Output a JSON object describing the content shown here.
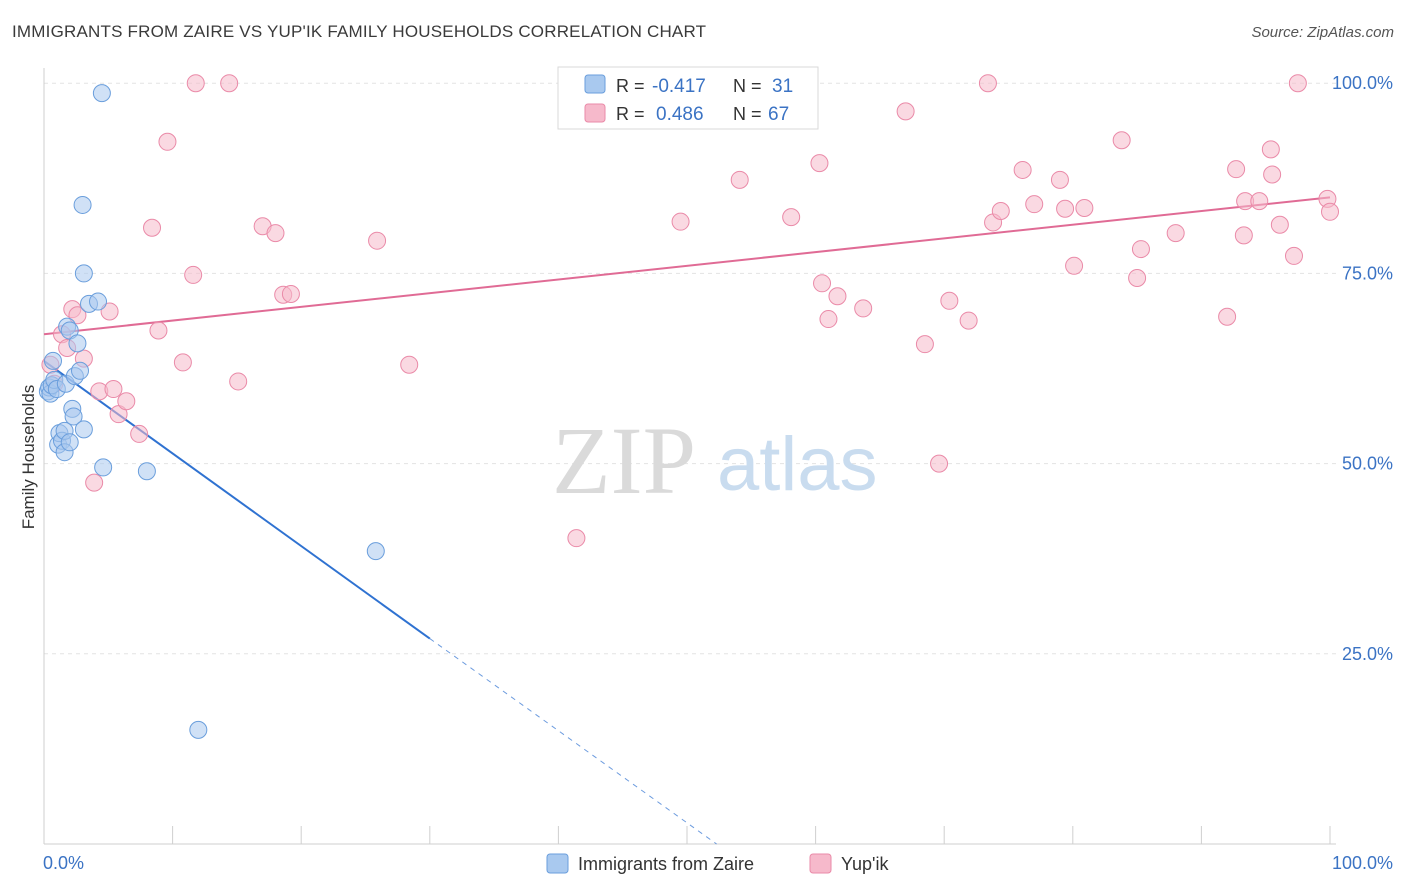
{
  "header": {
    "title": "IMMIGRANTS FROM ZAIRE VS YUP'IK FAMILY HOUSEHOLDS CORRELATION CHART",
    "source": "Source: ZipAtlas.com"
  },
  "watermark": {
    "zip": "ZIP",
    "atlas": "atlas"
  },
  "colors": {
    "blue_fill": "#a9c9ef",
    "blue_stroke": "#6a9edc",
    "blue_line": "#2f72d1",
    "pink_fill": "#f6b9cb",
    "pink_stroke": "#ea8aa8",
    "pink_line": "#e06b95",
    "tick_label": "#3b73c4"
  },
  "chart_data": {
    "type": "scatter",
    "ylabel": "Family Households",
    "xlim": [
      0,
      100
    ],
    "ylim": [
      0,
      102
    ],
    "x_tick_labels": [
      {
        "value": 0,
        "label": "0.0%"
      },
      {
        "value": 100,
        "label": "100.0%"
      }
    ],
    "y_tick_labels": [
      {
        "value": 25,
        "label": "25.0%"
      },
      {
        "value": 50,
        "label": "50.0%"
      },
      {
        "value": 75,
        "label": "75.0%"
      },
      {
        "value": 100,
        "label": "100.0%"
      }
    ],
    "legend": {
      "placement": "top-center",
      "rows": [
        {
          "r_label": "R =",
          "r_value": "-0.417",
          "n_label": "N =",
          "n_value": "31"
        },
        {
          "r_label": "R =",
          "r_value": "0.486",
          "n_label": "N =",
          "n_value": "67"
        }
      ]
    },
    "bottom_legend": [
      "Immigrants from Zaire",
      "Yup'ik"
    ],
    "series": [
      {
        "name": "Immigrants from Zaire",
        "color": "#a9c9ef",
        "trend": {
          "x0": 0,
          "y0": 63.5,
          "x1": 30,
          "y1": 27,
          "dashed_to_x": 52.3,
          "dashed_to_y": 0
        },
        "points": [
          [
            0.3,
            59.5
          ],
          [
            0.4,
            60.0
          ],
          [
            0.5,
            59.2
          ],
          [
            0.6,
            60.3
          ],
          [
            0.7,
            63.5
          ],
          [
            0.8,
            61.0
          ],
          [
            1.0,
            59.8
          ],
          [
            1.1,
            52.5
          ],
          [
            1.2,
            54.0
          ],
          [
            1.4,
            53.0
          ],
          [
            1.6,
            54.3
          ],
          [
            1.6,
            51.5
          ],
          [
            1.7,
            60.5
          ],
          [
            1.8,
            68.0
          ],
          [
            2.0,
            67.5
          ],
          [
            2.0,
            52.8
          ],
          [
            2.2,
            57.2
          ],
          [
            2.3,
            56.2
          ],
          [
            2.4,
            61.5
          ],
          [
            2.6,
            65.8
          ],
          [
            2.8,
            62.2
          ],
          [
            3.0,
            84.0
          ],
          [
            3.1,
            75.0
          ],
          [
            3.1,
            54.5
          ],
          [
            3.5,
            71.0
          ],
          [
            4.2,
            71.3
          ],
          [
            4.6,
            49.5
          ],
          [
            4.5,
            98.7
          ],
          [
            8.0,
            49.0
          ],
          [
            25.8,
            38.5
          ],
          [
            12.0,
            15.0
          ]
        ]
      },
      {
        "name": "Yup'ik",
        "color": "#f6b9cb",
        "trend": {
          "x0": 0,
          "y0": 67,
          "x1": 100,
          "y1": 85
        },
        "points": [
          [
            0.5,
            63.0
          ],
          [
            0.8,
            60.5
          ],
          [
            1.4,
            67.0
          ],
          [
            1.8,
            65.2
          ],
          [
            2.2,
            70.3
          ],
          [
            2.6,
            69.5
          ],
          [
            3.1,
            63.8
          ],
          [
            3.9,
            47.5
          ],
          [
            4.3,
            59.5
          ],
          [
            5.1,
            70.0
          ],
          [
            5.4,
            59.8
          ],
          [
            5.8,
            56.5
          ],
          [
            6.4,
            58.2
          ],
          [
            7.4,
            53.9
          ],
          [
            8.4,
            81.0
          ],
          [
            8.9,
            67.5
          ],
          [
            9.6,
            92.3
          ],
          [
            10.8,
            63.3
          ],
          [
            11.6,
            74.8
          ],
          [
            11.8,
            100.0
          ],
          [
            14.4,
            100.0
          ],
          [
            15.1,
            60.8
          ],
          [
            17.0,
            81.2
          ],
          [
            18.0,
            80.3
          ],
          [
            18.6,
            72.2
          ],
          [
            19.2,
            72.3
          ],
          [
            25.9,
            79.3
          ],
          [
            28.4,
            63.0
          ],
          [
            41.4,
            40.2
          ],
          [
            49.5,
            81.8
          ],
          [
            54.1,
            87.3
          ],
          [
            58.1,
            82.4
          ],
          [
            60.3,
            89.5
          ],
          [
            60.5,
            73.7
          ],
          [
            61.0,
            69.0
          ],
          [
            61.7,
            72.0
          ],
          [
            63.7,
            70.4
          ],
          [
            67.0,
            96.3
          ],
          [
            68.5,
            65.7
          ],
          [
            69.6,
            50.0
          ],
          [
            70.4,
            71.4
          ],
          [
            71.9,
            68.8
          ],
          [
            73.4,
            100.0
          ],
          [
            73.8,
            81.7
          ],
          [
            74.4,
            83.2
          ],
          [
            76.1,
            88.6
          ],
          [
            77.0,
            84.1
          ],
          [
            79.0,
            87.3
          ],
          [
            79.4,
            83.5
          ],
          [
            80.1,
            76.0
          ],
          [
            80.9,
            83.6
          ],
          [
            83.8,
            92.5
          ],
          [
            85.0,
            74.4
          ],
          [
            85.3,
            78.2
          ],
          [
            88.0,
            80.3
          ],
          [
            92.0,
            69.3
          ],
          [
            92.7,
            88.7
          ],
          [
            93.3,
            80.0
          ],
          [
            93.4,
            84.5
          ],
          [
            94.5,
            84.5
          ],
          [
            95.4,
            91.3
          ],
          [
            95.5,
            88.0
          ],
          [
            96.1,
            81.4
          ],
          [
            97.2,
            77.3
          ],
          [
            97.5,
            100.0
          ],
          [
            99.8,
            84.8
          ],
          [
            100.0,
            83.1
          ]
        ]
      }
    ]
  }
}
